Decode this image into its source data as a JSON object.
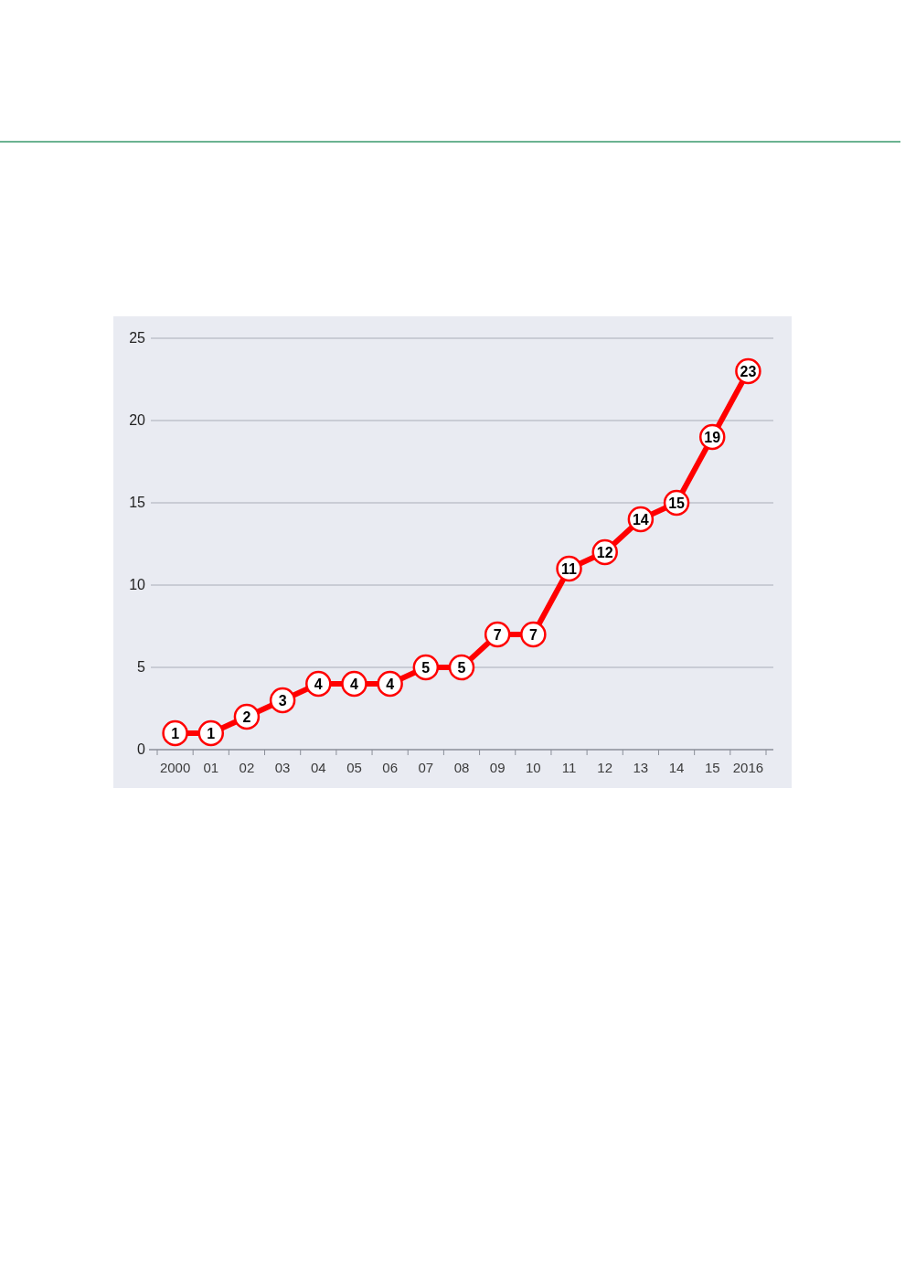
{
  "chart_data": {
    "type": "line",
    "categories": [
      "2000",
      "01",
      "02",
      "03",
      "04",
      "05",
      "06",
      "07",
      "08",
      "09",
      "10",
      "11",
      "12",
      "13",
      "14",
      "15",
      "2016"
    ],
    "values": [
      1,
      1,
      2,
      3,
      4,
      4,
      4,
      5,
      5,
      7,
      7,
      11,
      12,
      14,
      15,
      19,
      23
    ],
    "color": "#ff0000",
    "ylim": [
      0,
      25
    ],
    "yticks": [
      0,
      5,
      10,
      15,
      20,
      25
    ],
    "grid": "y",
    "marker": "circle",
    "line_style": "solid",
    "data_labels": true
  }
}
